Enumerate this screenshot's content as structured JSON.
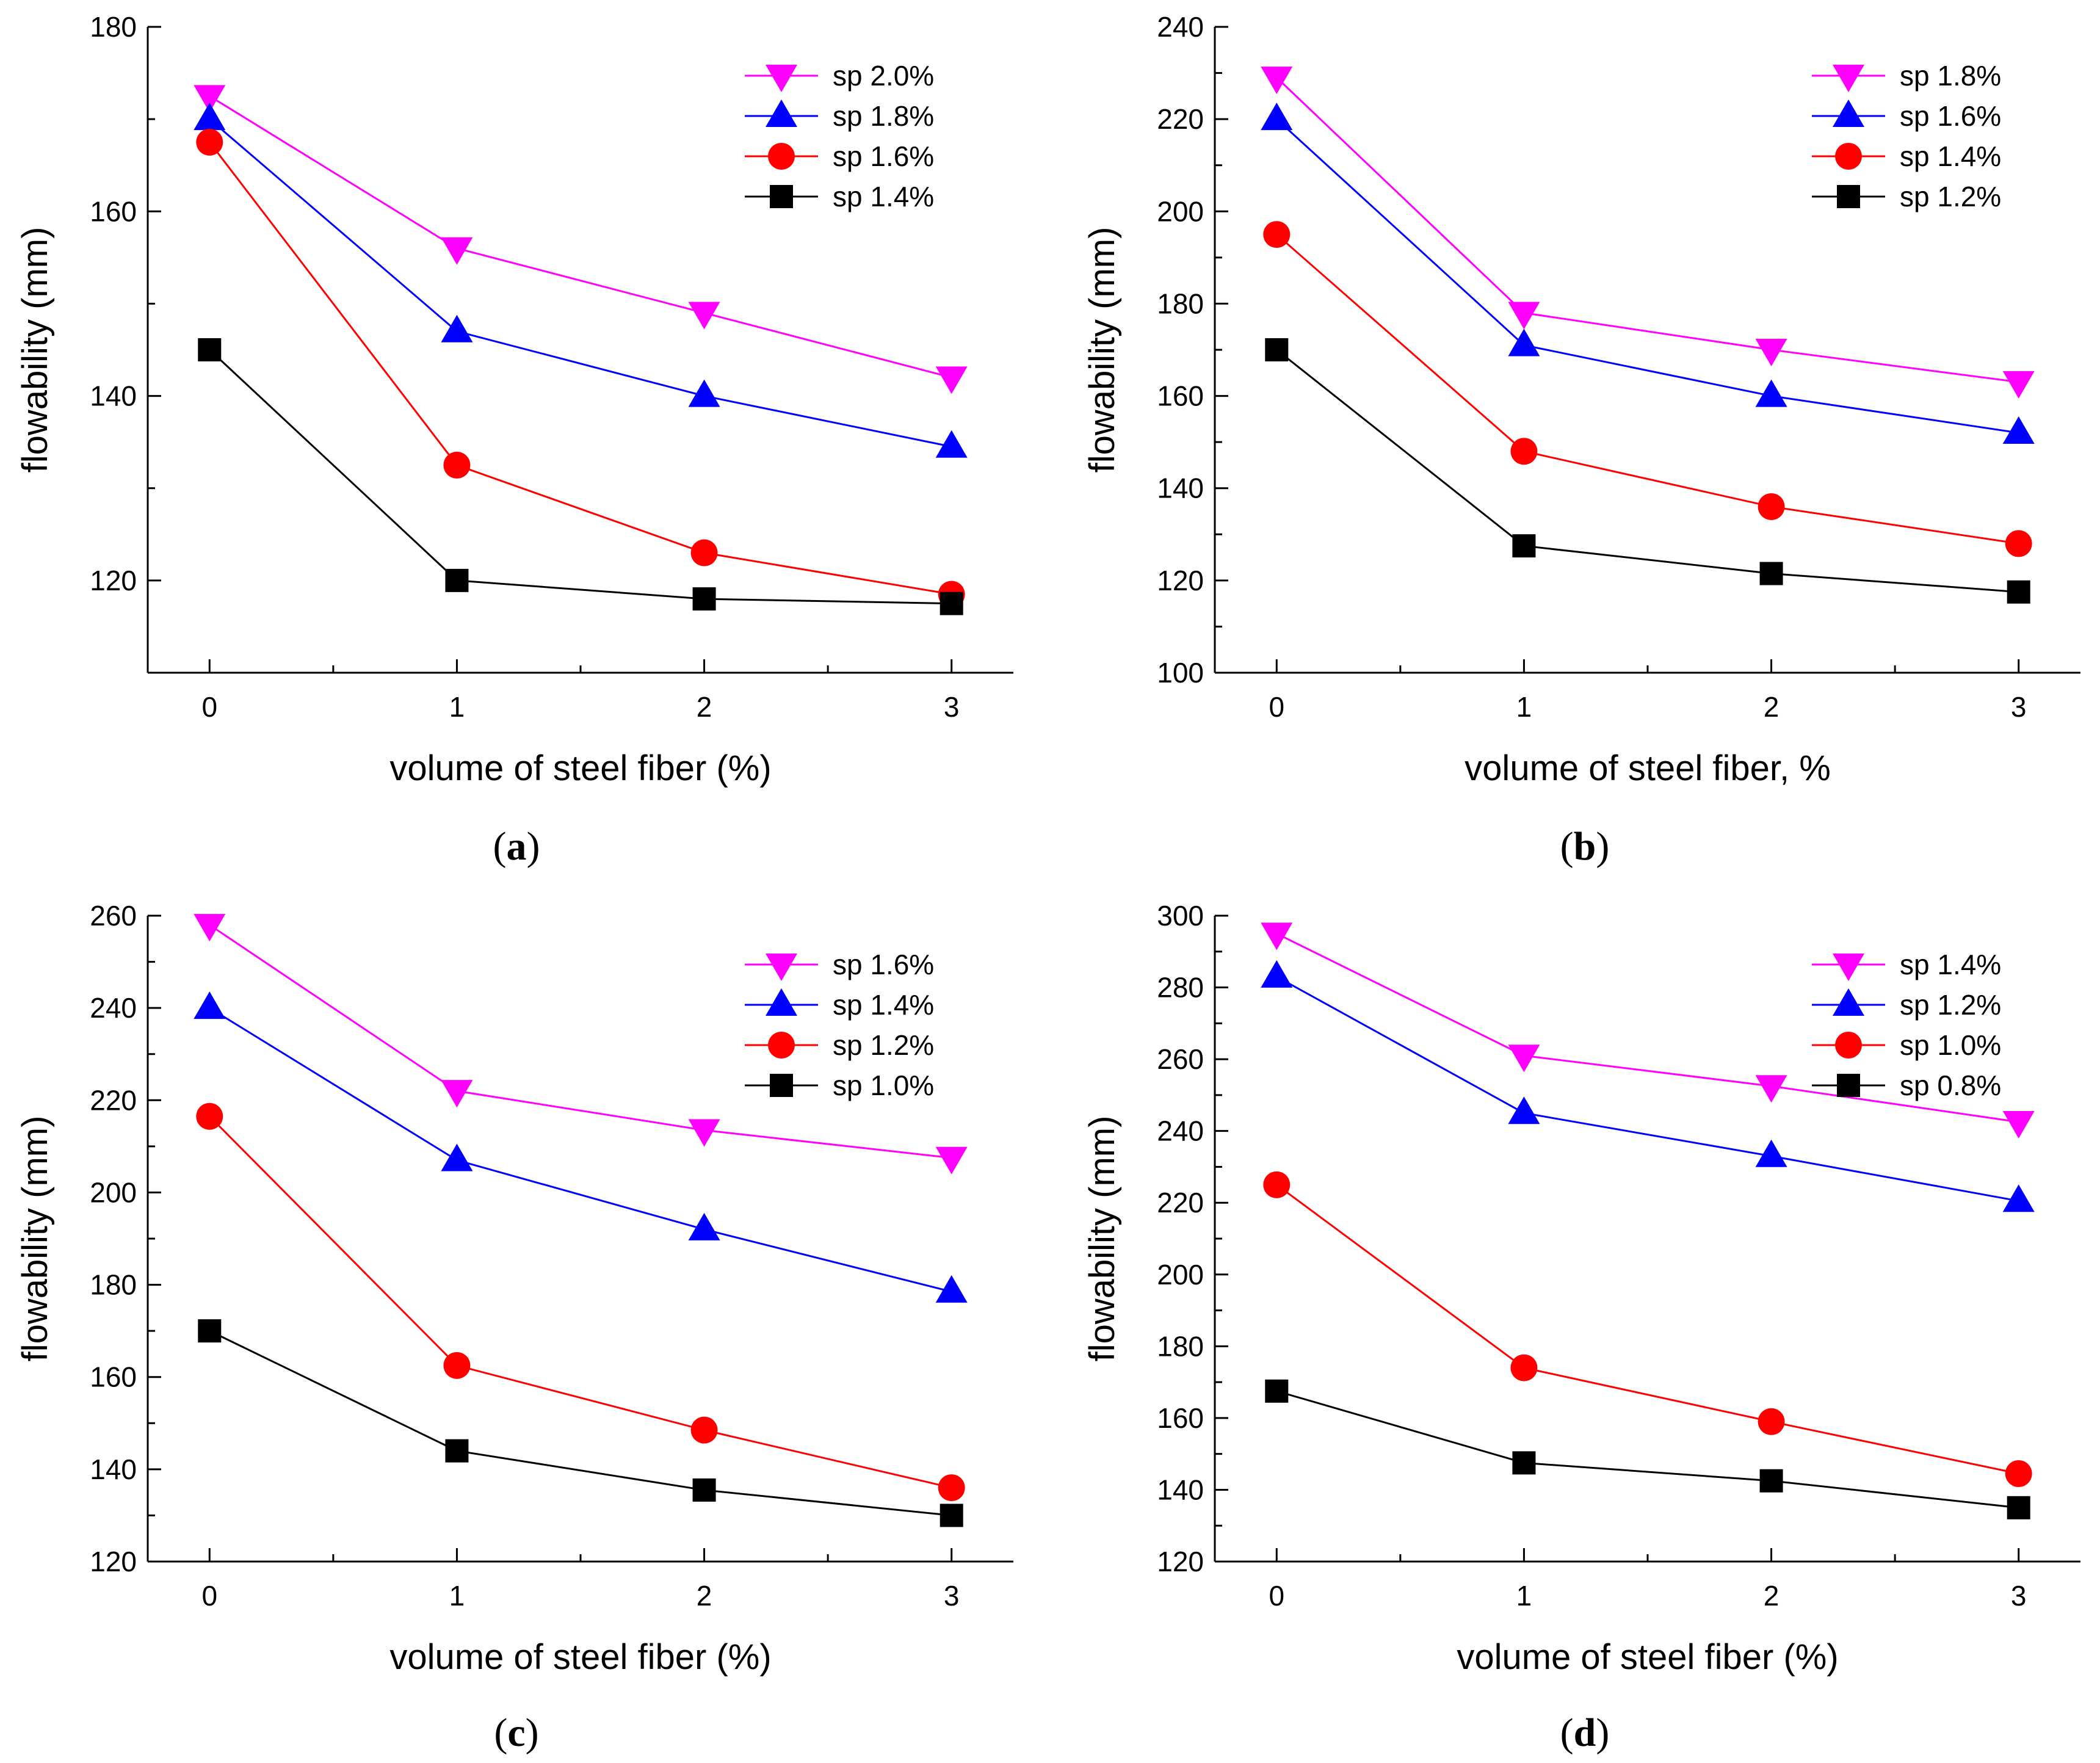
{
  "chart_data": [
    {
      "panel": "a",
      "caption_letter": "a",
      "type": "line",
      "title": "",
      "xlabel": "volume of steel fiber (%)",
      "ylabel": "flowability (mm)",
      "x": [
        0,
        1,
        2,
        3
      ],
      "xlim": [
        -0.25,
        3.25
      ],
      "ylim": [
        110,
        180
      ],
      "yticks": [
        120,
        140,
        160,
        180
      ],
      "xticks": [
        0,
        1,
        2,
        3
      ],
      "legend_position": "top-right",
      "series": [
        {
          "name": "sp 2.0%",
          "marker": "triangle-down",
          "color": "#ff00ff",
          "values": [
            172.5,
            156,
            149,
            142
          ]
        },
        {
          "name": "sp 1.8%",
          "marker": "triangle-up",
          "color": "#0000ff",
          "values": [
            170,
            147,
            140,
            134.5
          ]
        },
        {
          "name": "sp 1.6%",
          "marker": "circle",
          "color": "#ff0000",
          "values": [
            167.5,
            132.5,
            123,
            118.5
          ]
        },
        {
          "name": "sp 1.4%",
          "marker": "square",
          "color": "#000000",
          "values": [
            145,
            120,
            118,
            117.5
          ]
        }
      ]
    },
    {
      "panel": "b",
      "caption_letter": "b",
      "type": "line",
      "title": "",
      "xlabel": "volume of steel fiber, %",
      "ylabel": "flowability (mm)",
      "x": [
        0,
        1,
        2,
        3
      ],
      "xlim": [
        -0.25,
        3.25
      ],
      "ylim": [
        100,
        240
      ],
      "yticks": [
        100,
        120,
        140,
        160,
        180,
        200,
        220,
        240
      ],
      "xticks": [
        0,
        1,
        2,
        3
      ],
      "legend_position": "top-right",
      "series": [
        {
          "name": "sp 1.8%",
          "marker": "triangle-down",
          "color": "#ff00ff",
          "values": [
            229,
            178,
            170,
            163
          ]
        },
        {
          "name": "sp 1.6%",
          "marker": "triangle-up",
          "color": "#0000ff",
          "values": [
            220,
            171,
            160,
            152
          ]
        },
        {
          "name": "sp 1.4%",
          "marker": "circle",
          "color": "#ff0000",
          "values": [
            195,
            148,
            136,
            128
          ]
        },
        {
          "name": "sp 1.2%",
          "marker": "square",
          "color": "#000000",
          "values": [
            170,
            127.5,
            121.5,
            117.5
          ]
        }
      ]
    },
    {
      "panel": "c",
      "caption_letter": "c",
      "type": "line",
      "title": "",
      "xlabel": "volume of steel fiber (%)",
      "ylabel": "flowability (mm)",
      "x": [
        0,
        1,
        2,
        3
      ],
      "xlim": [
        -0.25,
        3.25
      ],
      "ylim": [
        120,
        260
      ],
      "yticks": [
        120,
        140,
        160,
        180,
        200,
        220,
        240,
        260
      ],
      "xticks": [
        0,
        1,
        2,
        3
      ],
      "legend_position": "top-right",
      "series": [
        {
          "name": "sp 1.6%",
          "marker": "triangle-down",
          "color": "#ff00ff",
          "values": [
            258,
            222,
            213.5,
            207.5
          ]
        },
        {
          "name": "sp 1.4%",
          "marker": "triangle-up",
          "color": "#0000ff",
          "values": [
            240,
            207,
            192,
            178.5
          ]
        },
        {
          "name": "sp 1.2%",
          "marker": "circle",
          "color": "#ff0000",
          "values": [
            216.5,
            162.5,
            148.5,
            136
          ]
        },
        {
          "name": "sp 1.0%",
          "marker": "square",
          "color": "#000000",
          "values": [
            170,
            144,
            135.5,
            130
          ]
        }
      ]
    },
    {
      "panel": "d",
      "caption_letter": "d",
      "type": "line",
      "title": "",
      "xlabel": "volume of steel fiber (%)",
      "ylabel": "flowability (mm)",
      "x": [
        0,
        1,
        2,
        3
      ],
      "xlim": [
        -0.25,
        3.25
      ],
      "ylim": [
        120,
        300
      ],
      "yticks": [
        120,
        140,
        160,
        180,
        200,
        220,
        240,
        260,
        280,
        300
      ],
      "xticks": [
        0,
        1,
        2,
        3
      ],
      "legend_position": "top-right",
      "series": [
        {
          "name": "sp 1.4%",
          "marker": "triangle-down",
          "color": "#ff00ff",
          "values": [
            295,
            261,
            252.5,
            242.5
          ]
        },
        {
          "name": "sp 1.2%",
          "marker": "triangle-up",
          "color": "#0000ff",
          "values": [
            283,
            245,
            233,
            220.5
          ]
        },
        {
          "name": "sp 1.0%",
          "marker": "circle",
          "color": "#ff0000",
          "values": [
            225,
            174,
            159,
            144.5
          ]
        },
        {
          "name": "sp 0.8%",
          "marker": "square",
          "color": "#000000",
          "values": [
            167.5,
            147.5,
            142.5,
            135
          ]
        }
      ]
    }
  ]
}
